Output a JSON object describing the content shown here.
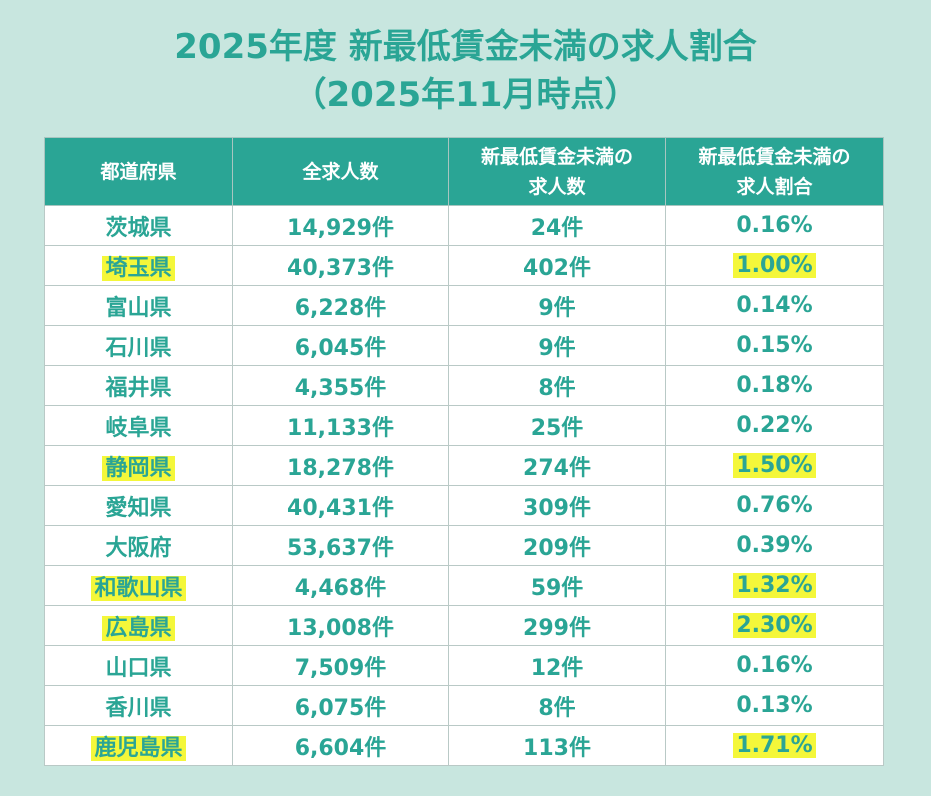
{
  "title": {
    "line1": "2025年度 新最低賃金未満の求人割合",
    "line2": "（2025年11月時点）"
  },
  "table": {
    "headers": [
      [
        "都道府県"
      ],
      [
        "全求人数"
      ],
      [
        "新最低賃金未満の",
        "求人数"
      ],
      [
        "新最低賃金未満の",
        "求人割合"
      ]
    ],
    "rows": [
      {
        "pref": "茨城県",
        "total": "14,929件",
        "under": "24件",
        "ratio": "0.16%",
        "highlight": false
      },
      {
        "pref": "埼玉県",
        "total": "40,373件",
        "under": "402件",
        "ratio": "1.00%",
        "highlight": true
      },
      {
        "pref": "富山県",
        "total": "6,228件",
        "under": "9件",
        "ratio": "0.14%",
        "highlight": false
      },
      {
        "pref": "石川県",
        "total": "6,045件",
        "under": "9件",
        "ratio": "0.15%",
        "highlight": false
      },
      {
        "pref": "福井県",
        "total": "4,355件",
        "under": "8件",
        "ratio": "0.18%",
        "highlight": false
      },
      {
        "pref": "岐阜県",
        "total": "11,133件",
        "under": "25件",
        "ratio": "0.22%",
        "highlight": false
      },
      {
        "pref": "静岡県",
        "total": "18,278件",
        "under": "274件",
        "ratio": "1.50%",
        "highlight": true
      },
      {
        "pref": "愛知県",
        "total": "40,431件",
        "under": "309件",
        "ratio": "0.76%",
        "highlight": false
      },
      {
        "pref": "大阪府",
        "total": "53,637件",
        "under": "209件",
        "ratio": "0.39%",
        "highlight": false
      },
      {
        "pref": "和歌山県",
        "total": "4,468件",
        "under": "59件",
        "ratio": "1.32%",
        "highlight": true
      },
      {
        "pref": "広島県",
        "total": "13,008件",
        "under": "299件",
        "ratio": "2.30%",
        "highlight": true
      },
      {
        "pref": "山口県",
        "total": "7,509件",
        "under": "12件",
        "ratio": "0.16%",
        "highlight": false
      },
      {
        "pref": "香川県",
        "total": "6,075件",
        "under": "8件",
        "ratio": "0.13%",
        "highlight": false
      },
      {
        "pref": "鹿児島県",
        "total": "6,604件",
        "under": "113件",
        "ratio": "1.71%",
        "highlight": true
      }
    ]
  },
  "colors": {
    "accent": "#2aa595",
    "background": "#c8e6df",
    "highlight": "#f4f73a"
  }
}
